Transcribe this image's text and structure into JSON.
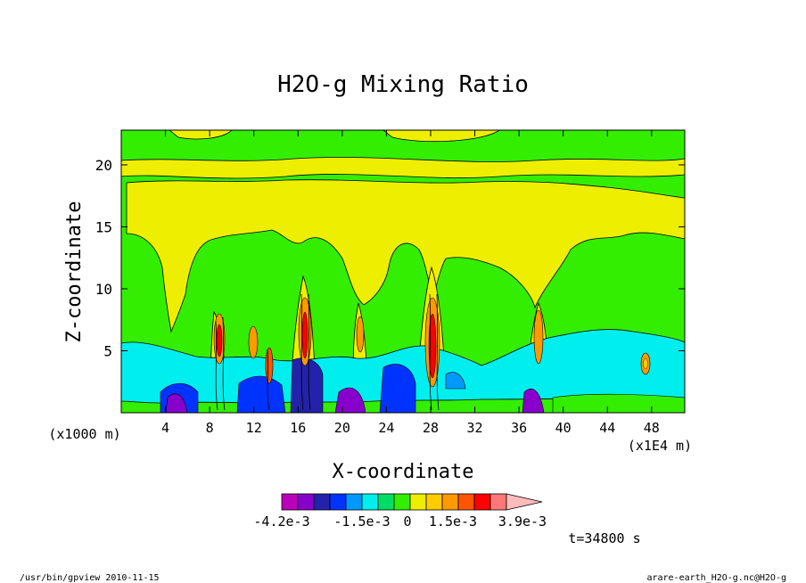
{
  "chart_data": {
    "type": "heatmap",
    "title": "H2O-g Mixing Ratio",
    "xlabel": "X-coordinate",
    "ylabel": "Z-coordinate",
    "x_unit_left": "(x1000 m)",
    "x_unit_right": "(x1E4 m)",
    "x_ticks": [
      "4",
      "8",
      "12",
      "16",
      "20",
      "24",
      "28",
      "32",
      "36",
      "40",
      "44",
      "48"
    ],
    "x_tick_values": [
      4,
      8,
      12,
      16,
      20,
      24,
      28,
      32,
      36,
      40,
      44,
      48
    ],
    "y_ticks": [
      "5",
      "10",
      "15",
      "20"
    ],
    "y_tick_values": [
      5,
      10,
      15,
      20
    ],
    "xlim": [
      0,
      51
    ],
    "ylim": [
      0,
      22.8
    ],
    "colorbar": {
      "colors": [
        "#bb00bb",
        "#8800cc",
        "#2222aa",
        "#0033ff",
        "#0099ff",
        "#00eeee",
        "#00dd66",
        "#33ee00",
        "#eeee00",
        "#ffcc00",
        "#ff9900",
        "#ff5500",
        "#ff0000",
        "#ff7777",
        "#ffbbbb"
      ],
      "labels": [
        "-4.2e-3",
        "-1.5e-3",
        "0",
        "1.5e-3",
        "3.9e-3"
      ]
    },
    "time_label": "t=34800 s"
  },
  "footer": {
    "left": "/usr/bin/gpview  2010-11-15",
    "right": "arare-earth_H2O-g.nc@H2O-g"
  }
}
